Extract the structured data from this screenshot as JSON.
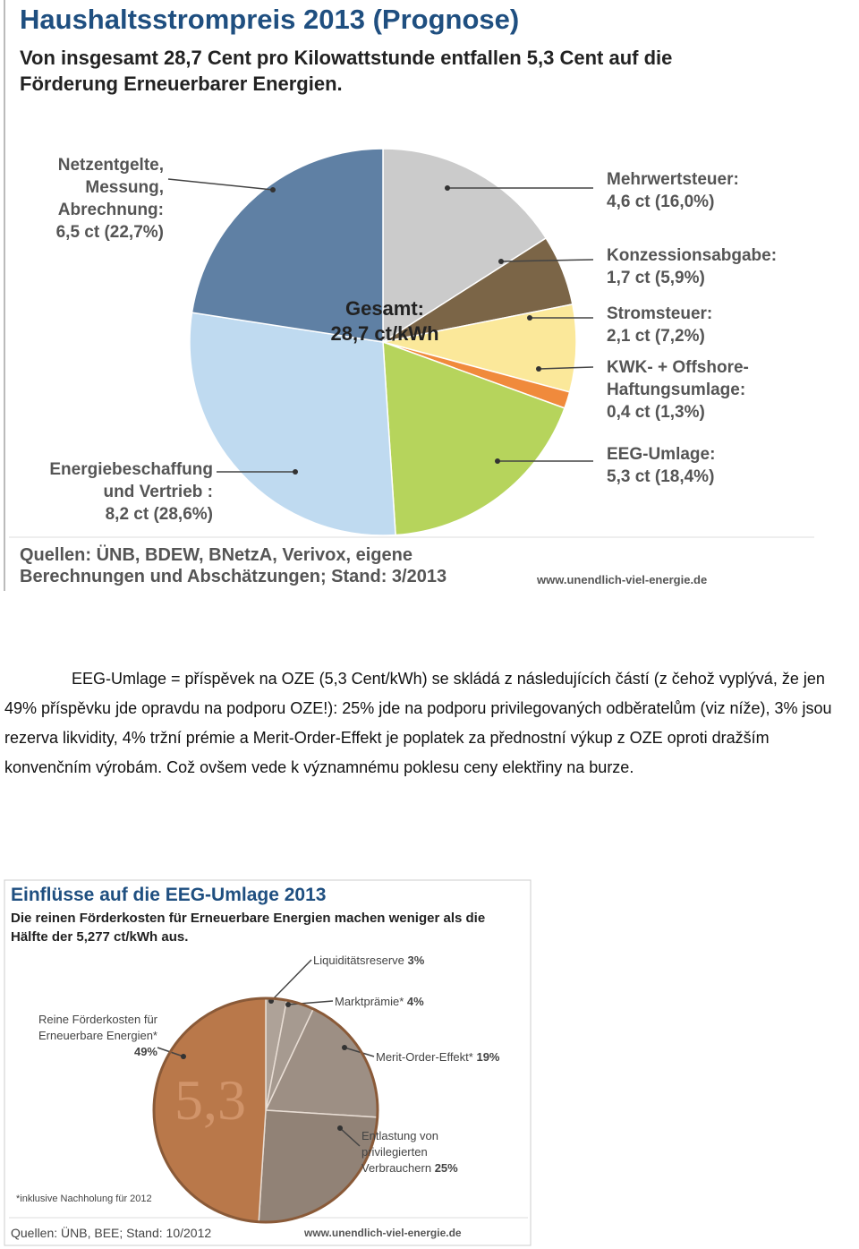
{
  "chart_data": [
    {
      "type": "pie",
      "title": "Haushaltsstrompreis 2013 (Prognose)",
      "subtitle": "Von insgesamt 28,7 Cent pro Kilowattstunde entfallen 5,3 Cent auf die Förderung Erneuerbarer Energien.",
      "annotations": [
        "Gesamt:",
        "28,7 ct/kWh"
      ],
      "categories": [
        "Mehrwertsteuer:",
        "Konzessionsabgabe:",
        "Stromsteuer:",
        "KWK- + Offshore-Haftungsumlage:",
        "EEG-Umlage:",
        "Energiebeschaffung und Vertrieb :",
        "Netzentgelte, Messung, Abrechnung:"
      ],
      "values": [
        4.6,
        1.7,
        2.1,
        0.4,
        5.3,
        8.2,
        6.5
      ],
      "value_labels": [
        "4,6 ct (16,0%)",
        "1,7 ct (5,9%)",
        "2,1 ct (7,2%)",
        "0,4 ct (1,3%)",
        "5,3 ct (18,4%)",
        "8,2 ct (28,6%)",
        "6,5 ct (22,7%)"
      ],
      "colors": [
        "#cbcbcb",
        "#7b6547",
        "#fbe89a",
        "#f08a3c",
        "#b6d45c",
        "#bfdaf0",
        "#5f80a4"
      ],
      "source": "Quellen: ÜNB, BDEW, BNetzA, Verivox, eigene Berechnungen und Abschätzungen; Stand: 3/2013",
      "website": "www.unendlich-viel-energie.de"
    },
    {
      "type": "pie",
      "title": "Einflüsse auf die EEG-Umlage 2013",
      "subtitle": "Die reinen Förderkosten für Erneuerbare Energien machen weniger als die Hälfte der 5,277 ct/kWh aus.",
      "annotations": [
        "5,3"
      ],
      "categories": [
        "Liquiditätsreserve",
        "Marktprämie*",
        "Merit-Order-Effekt*",
        "Entlastung von privilegierten Verbrauchern",
        "Reine Förderkosten für Erneuerbare Energien*"
      ],
      "values": [
        3,
        4,
        19,
        25,
        49
      ],
      "value_labels": [
        "3%",
        "4%",
        "19%",
        "25%",
        "49%"
      ],
      "colors": [
        "#aea298",
        "#a69a90",
        "#9d8f84",
        "#918276",
        "#b9784a"
      ],
      "footnote": "*inklusive Nachholung für 2012",
      "source": "Quellen: ÜNB, BEE; Stand: 10/2012",
      "website": "www.unendlich-viel-energie.de"
    }
  ],
  "paragraph": "EEG-Umlage = příspěvek na OZE (5,3 Cent/kWh) se skládá z následujících částí (z čehož vyplývá, že jen 49% příspěvku jde opravdu na podporu OZE!): 25% jde na podporu privilegovaných odběratelům (viz níže), 3% jsou rezerva likvidity, 4% tržní prémie a Merit-Order-Effekt je poplatek za přednostní výkup z OZE oproti dražším konvenčním výrobám. Což ovšem vede k významnému poklesu ceny elektřiny na burze."
}
